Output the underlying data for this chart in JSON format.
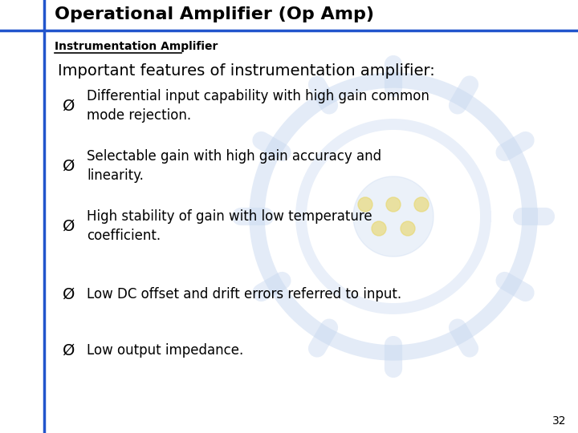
{
  "title": "Operational Amplifier (Op Amp)",
  "subtitle": "Instrumentation Amplifier",
  "heading": "Important features of instrumentation amplifier:",
  "bullets": [
    "Differential input capability with high gain common\nmode rejection.",
    "Selectable gain with high gain accuracy and\nlinearity.",
    "High stability of gain with low temperature\ncoefficient.",
    "Low DC offset and drift errors referred to input.",
    "Low output impedance."
  ],
  "bullet_symbol": "Ø",
  "page_number": "32",
  "bg_color": "#ffffff",
  "title_text_color": "#000000",
  "title_border_color": "#2255cc",
  "left_bar_color": "#2255cc",
  "subtitle_color": "#000000",
  "heading_color": "#000000",
  "bullet_color": "#000000",
  "watermark_color": "#c8d8f0",
  "watermark_dot_color": "#e8d870",
  "title_fontsize": 16,
  "subtitle_fontsize": 10,
  "heading_fontsize": 14,
  "bullet_fontsize": 12,
  "page_num_fontsize": 10
}
